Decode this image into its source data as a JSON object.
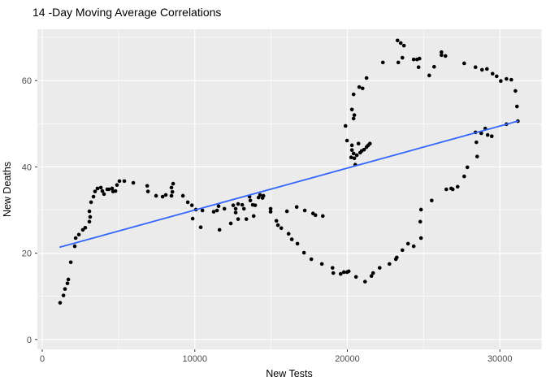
{
  "title": "14 -Day Moving Average Correlations",
  "axes": {
    "x": {
      "label": "New Tests",
      "ticks": [
        0,
        10000,
        20000,
        30000
      ],
      "minor": [
        5000,
        15000,
        25000
      ]
    },
    "y": {
      "label": "New Deaths",
      "ticks": [
        0,
        20,
        40,
        60
      ],
      "minor": [
        10,
        30,
        50,
        70
      ]
    }
  },
  "style": {
    "panel_bg": "#EBEBEB",
    "grid_major": "#FFFFFF",
    "grid_minor": "#FFFFFF",
    "point_color": "#000000",
    "trend_color": "#3366FF",
    "tick_text_color": "#4D4D4D",
    "tick_mark_color": "#333333"
  },
  "chart_data": {
    "type": "scatter",
    "title": "14 -Day Moving Average Correlations",
    "xlabel": "New Tests",
    "ylabel": "New Deaths",
    "xlim": [
      -320,
      32730
    ],
    "ylim": [
      -2.3,
      71.9
    ],
    "x_ticks": [
      0,
      10000,
      20000,
      30000
    ],
    "y_ticks": [
      0,
      20,
      40,
      60
    ],
    "grid": "on",
    "legend": "none",
    "trend_line": {
      "x1": 1170,
      "y1": 21.4,
      "x2": 31180,
      "y2": 50.6
    },
    "points": [
      [
        1170,
        8.5
      ],
      [
        1390,
        10.2
      ],
      [
        1490,
        11.7
      ],
      [
        1650,
        13.0
      ],
      [
        1710,
        13.9
      ],
      [
        1870,
        17.9
      ],
      [
        2130,
        21.6
      ],
      [
        2190,
        23.5
      ],
      [
        2400,
        24.3
      ],
      [
        2660,
        25.4
      ],
      [
        2820,
        25.9
      ],
      [
        3090,
        27.3
      ],
      [
        3140,
        28.4
      ],
      [
        3090,
        29.7
      ],
      [
        3200,
        31.8
      ],
      [
        3360,
        33.1
      ],
      [
        3460,
        34.3
      ],
      [
        3620,
        35.0
      ],
      [
        3840,
        35.2
      ],
      [
        3940,
        34.4
      ],
      [
        4050,
        33.7
      ],
      [
        4260,
        34.8
      ],
      [
        4370,
        34.8
      ],
      [
        4580,
        35.0
      ],
      [
        4640,
        34.3
      ],
      [
        4800,
        34.4
      ],
      [
        4900,
        35.8
      ],
      [
        5060,
        36.7
      ],
      [
        5380,
        36.7
      ],
      [
        5970,
        36.3
      ],
      [
        6880,
        35.6
      ],
      [
        6930,
        34.3
      ],
      [
        7460,
        33.3
      ],
      [
        7890,
        33.1
      ],
      [
        8100,
        33.5
      ],
      [
        8470,
        35.2
      ],
      [
        8580,
        36.1
      ],
      [
        8530,
        34.2
      ],
      [
        8470,
        33.3
      ],
      [
        9220,
        33.3
      ],
      [
        9540,
        31.8
      ],
      [
        9810,
        31.1
      ],
      [
        9860,
        28.0
      ],
      [
        10070,
        30.1
      ],
      [
        10390,
        26.0
      ],
      [
        10500,
        29.9
      ],
      [
        11240,
        29.6
      ],
      [
        11460,
        29.9
      ],
      [
        11560,
        30.9
      ],
      [
        11620,
        25.4
      ],
      [
        11940,
        30.3
      ],
      [
        12360,
        26.9
      ],
      [
        12520,
        31.1
      ],
      [
        12680,
        30.3
      ],
      [
        12680,
        29.4
      ],
      [
        12840,
        31.4
      ],
      [
        12840,
        27.9
      ],
      [
        13110,
        31.2
      ],
      [
        13220,
        30.3
      ],
      [
        13380,
        27.9
      ],
      [
        13590,
        33.1
      ],
      [
        13640,
        32.2
      ],
      [
        13800,
        31.2
      ],
      [
        13860,
        28.6
      ],
      [
        13960,
        31.1
      ],
      [
        14180,
        32.9
      ],
      [
        14280,
        33.5
      ],
      [
        14440,
        32.8
      ],
      [
        14500,
        33.3
      ],
      [
        14970,
        30.3
      ],
      [
        14970,
        29.6
      ],
      [
        15350,
        27.5
      ],
      [
        15450,
        26.5
      ],
      [
        15670,
        25.8
      ],
      [
        16040,
        29.7
      ],
      [
        16150,
        24.5
      ],
      [
        16360,
        23.2
      ],
      [
        16680,
        30.7
      ],
      [
        16730,
        22.2
      ],
      [
        17210,
        29.9
      ],
      [
        17750,
        29.2
      ],
      [
        17910,
        28.8
      ],
      [
        18390,
        28.6
      ],
      [
        17160,
        20.1
      ],
      [
        17640,
        18.6
      ],
      [
        18330,
        17.5
      ],
      [
        19030,
        16.6
      ],
      [
        19080,
        15.4
      ],
      [
        19560,
        15.2
      ],
      [
        19770,
        15.6
      ],
      [
        19980,
        15.6
      ],
      [
        20090,
        15.8
      ],
      [
        20570,
        14.5
      ],
      [
        21160,
        13.4
      ],
      [
        21580,
        14.7
      ],
      [
        21690,
        15.4
      ],
      [
        22120,
        16.6
      ],
      [
        22760,
        17.5
      ],
      [
        23180,
        18.6
      ],
      [
        23240,
        19.0
      ],
      [
        23610,
        20.7
      ],
      [
        23980,
        22.2
      ],
      [
        24350,
        21.6
      ],
      [
        24830,
        23.5
      ],
      [
        24780,
        27.3
      ],
      [
        24830,
        30.1
      ],
      [
        25530,
        32.2
      ],
      [
        26490,
        34.8
      ],
      [
        26810,
        35.0
      ],
      [
        26910,
        34.8
      ],
      [
        27230,
        35.4
      ],
      [
        27660,
        37.8
      ],
      [
        27870,
        39.9
      ],
      [
        28510,
        42.4
      ],
      [
        28460,
        45.7
      ],
      [
        28400,
        48.0
      ],
      [
        28780,
        47.8
      ],
      [
        29040,
        48.9
      ],
      [
        29200,
        47.4
      ],
      [
        29470,
        47.1
      ],
      [
        30430,
        49.9
      ],
      [
        31020,
        57.6
      ],
      [
        31120,
        54.0
      ],
      [
        31180,
        50.6
      ],
      [
        19980,
        46.1
      ],
      [
        20300,
        45.0
      ],
      [
        20730,
        45.4
      ],
      [
        20300,
        43.9
      ],
      [
        20410,
        43.1
      ],
      [
        20620,
        42.7
      ],
      [
        20840,
        43.3
      ],
      [
        20940,
        43.7
      ],
      [
        21100,
        44.0
      ],
      [
        21260,
        44.6
      ],
      [
        21370,
        45.0
      ],
      [
        21480,
        45.4
      ],
      [
        20250,
        42.2
      ],
      [
        20460,
        42.0
      ],
      [
        20520,
        40.5
      ],
      [
        19880,
        49.5
      ],
      [
        20300,
        53.3
      ],
      [
        20460,
        52.0
      ],
      [
        20410,
        51.2
      ],
      [
        20410,
        56.8
      ],
      [
        20780,
        58.5
      ],
      [
        21000,
        58.2
      ],
      [
        21260,
        60.6
      ],
      [
        22330,
        64.2
      ],
      [
        23290,
        69.3
      ],
      [
        23500,
        68.7
      ],
      [
        23710,
        68.1
      ],
      [
        23610,
        65.3
      ],
      [
        23340,
        64.2
      ],
      [
        24350,
        64.9
      ],
      [
        24570,
        64.9
      ],
      [
        24730,
        65.1
      ],
      [
        24670,
        63.1
      ],
      [
        25370,
        61.2
      ],
      [
        25690,
        63.2
      ],
      [
        26170,
        66.6
      ],
      [
        26170,
        65.9
      ],
      [
        26430,
        65.7
      ],
      [
        27660,
        64.0
      ],
      [
        28400,
        63.1
      ],
      [
        28830,
        62.5
      ],
      [
        29150,
        62.7
      ],
      [
        29520,
        61.6
      ],
      [
        29790,
        61.0
      ],
      [
        30060,
        59.9
      ],
      [
        30430,
        60.4
      ],
      [
        30750,
        60.2
      ]
    ]
  }
}
